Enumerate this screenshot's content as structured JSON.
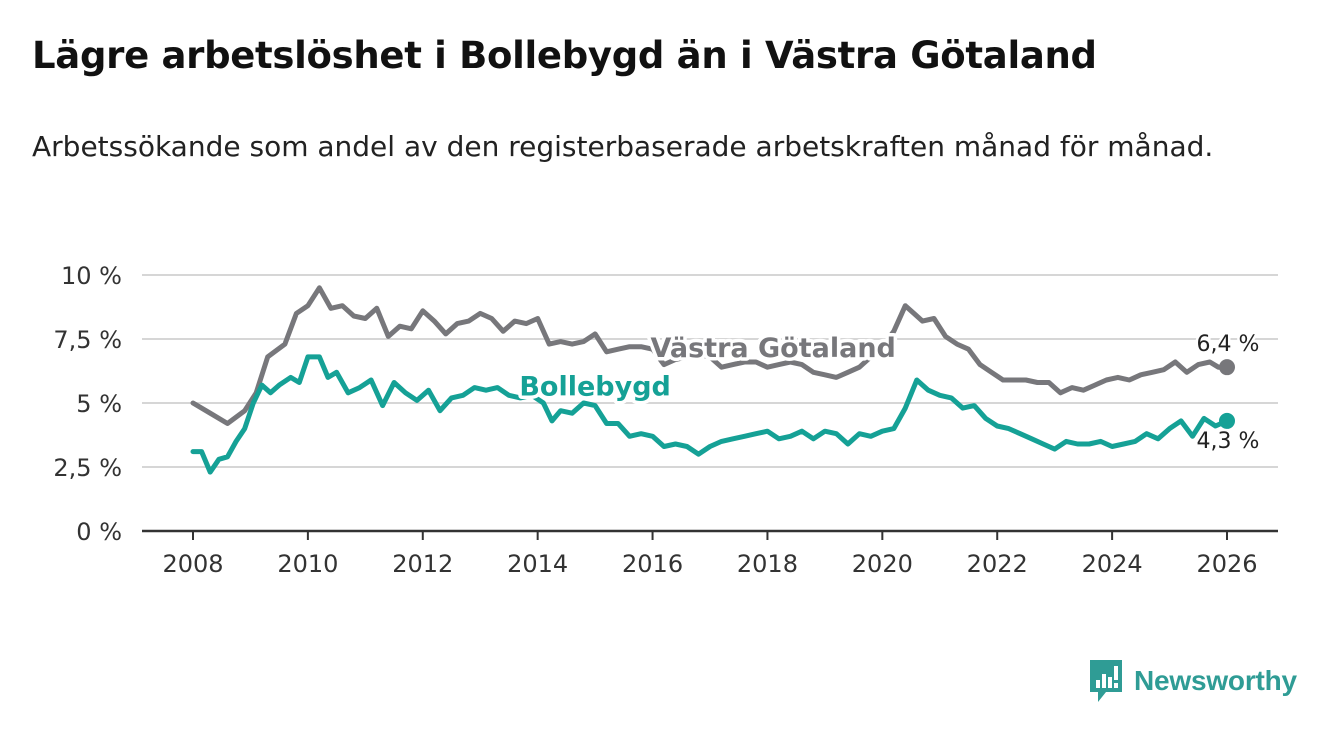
{
  "header": {
    "title": "Lägre arbetslöshet i Bollebygd än i Västra Götaland",
    "subtitle": "Arbetssökande som andel av den registerbaserade arbetskraften månad för månad."
  },
  "brand": {
    "name": "Newsworthy",
    "icon": "newsworthy-logo-icon",
    "color": "#2f9c95"
  },
  "chart_data": {
    "type": "line",
    "title": "Lägre arbetslöshet i Bollebygd än i Västra Götaland",
    "subtitle": "Arbetssökande som andel av den registerbaserade arbetskraften månad för månad.",
    "xlabel": "",
    "ylabel": "",
    "xlim": [
      2007.6,
      2026.9
    ],
    "ylim": [
      0,
      10
    ],
    "x_ticks": [
      2008,
      2010,
      2012,
      2014,
      2016,
      2018,
      2020,
      2022,
      2024,
      2026
    ],
    "x_tick_labels": [
      "2008",
      "2010",
      "2012",
      "2014",
      "2016",
      "2018",
      "2020",
      "2022",
      "2024",
      "2026"
    ],
    "y_ticks": [
      0,
      2.5,
      5,
      7.5,
      10
    ],
    "y_tick_labels": [
      "0 %",
      "2,5 %",
      "5 %",
      "7,5 %",
      "10 %"
    ],
    "grid": "horizontal",
    "legend": "inline labels",
    "series": [
      {
        "name": "Västra Götaland",
        "color": "#77777b",
        "end_label": "6,4 %",
        "x": [
          2008.0,
          2008.3,
          2008.6,
          2008.9,
          2009.1,
          2009.3,
          2009.6,
          2009.8,
          2010.0,
          2010.2,
          2010.4,
          2010.6,
          2010.8,
          2011.0,
          2011.2,
          2011.4,
          2011.6,
          2011.8,
          2012.0,
          2012.2,
          2012.4,
          2012.6,
          2012.8,
          2013.0,
          2013.2,
          2013.4,
          2013.6,
          2013.8,
          2014.0,
          2014.2,
          2014.4,
          2014.6,
          2014.8,
          2015.0,
          2015.2,
          2015.4,
          2015.6,
          2015.8,
          2016.0,
          2016.2,
          2016.4,
          2016.6,
          2016.8,
          2017.0,
          2017.2,
          2017.4,
          2017.6,
          2017.8,
          2018.0,
          2018.2,
          2018.4,
          2018.6,
          2018.8,
          2019.0,
          2019.2,
          2019.4,
          2019.6,
          2019.8,
          2020.0,
          2020.2,
          2020.4,
          2020.55,
          2020.7,
          2020.9,
          2021.1,
          2021.3,
          2021.5,
          2021.7,
          2021.9,
          2022.1,
          2022.3,
          2022.5,
          2022.7,
          2022.9,
          2023.1,
          2023.3,
          2023.5,
          2023.7,
          2023.9,
          2024.1,
          2024.3,
          2024.5,
          2024.7,
          2024.9,
          2025.1,
          2025.3,
          2025.5,
          2025.7,
          2025.85,
          2026.0
        ],
        "values": [
          5.0,
          4.6,
          4.2,
          4.7,
          5.4,
          6.8,
          7.3,
          8.5,
          8.8,
          9.5,
          8.7,
          8.8,
          8.4,
          8.3,
          8.7,
          7.6,
          8.0,
          7.9,
          8.6,
          8.2,
          7.7,
          8.1,
          8.2,
          8.5,
          8.3,
          7.8,
          8.2,
          8.1,
          8.3,
          7.3,
          7.4,
          7.3,
          7.4,
          7.7,
          7.0,
          7.1,
          7.2,
          7.2,
          7.1,
          6.5,
          6.7,
          6.8,
          6.9,
          6.8,
          6.4,
          6.5,
          6.6,
          6.6,
          6.4,
          6.5,
          6.6,
          6.5,
          6.2,
          6.1,
          6.0,
          6.2,
          6.4,
          6.8,
          7.2,
          7.8,
          8.8,
          8.5,
          8.2,
          8.3,
          7.6,
          7.3,
          7.1,
          6.5,
          6.2,
          5.9,
          5.9,
          5.9,
          5.8,
          5.8,
          5.4,
          5.6,
          5.5,
          5.7,
          5.9,
          6.0,
          5.9,
          6.1,
          6.2,
          6.3,
          6.6,
          6.2,
          6.5,
          6.6,
          6.4,
          6.4
        ]
      },
      {
        "name": "Bollebygd",
        "color": "#15a196",
        "end_label": "4,3 %",
        "x": [
          2008.0,
          2008.15,
          2008.3,
          2008.45,
          2008.6,
          2008.75,
          2008.9,
          2009.05,
          2009.2,
          2009.35,
          2009.5,
          2009.7,
          2009.85,
          2010.0,
          2010.2,
          2010.35,
          2010.5,
          2010.7,
          2010.9,
          2011.1,
          2011.3,
          2011.5,
          2011.7,
          2011.9,
          2012.1,
          2012.3,
          2012.5,
          2012.7,
          2012.9,
          2013.1,
          2013.3,
          2013.5,
          2013.7,
          2013.9,
          2014.1,
          2014.25,
          2014.4,
          2014.6,
          2014.8,
          2015.0,
          2015.2,
          2015.4,
          2015.6,
          2015.8,
          2016.0,
          2016.2,
          2016.4,
          2016.6,
          2016.8,
          2017.0,
          2017.2,
          2017.4,
          2017.6,
          2017.8,
          2018.0,
          2018.2,
          2018.4,
          2018.6,
          2018.8,
          2019.0,
          2019.2,
          2019.4,
          2019.6,
          2019.8,
          2020.0,
          2020.2,
          2020.4,
          2020.6,
          2020.8,
          2021.0,
          2021.2,
          2021.4,
          2021.6,
          2021.8,
          2022.0,
          2022.2,
          2022.4,
          2022.6,
          2022.8,
          2023.0,
          2023.2,
          2023.4,
          2023.6,
          2023.8,
          2024.0,
          2024.2,
          2024.4,
          2024.6,
          2024.8,
          2025.0,
          2025.2,
          2025.4,
          2025.6,
          2025.8,
          2026.0
        ],
        "values": [
          3.1,
          3.1,
          2.3,
          2.8,
          2.9,
          3.5,
          4.0,
          5.0,
          5.7,
          5.4,
          5.7,
          6.0,
          5.8,
          6.8,
          6.8,
          6.0,
          6.2,
          5.4,
          5.6,
          5.9,
          4.9,
          5.8,
          5.4,
          5.1,
          5.5,
          4.7,
          5.2,
          5.3,
          5.6,
          5.5,
          5.6,
          5.3,
          5.2,
          5.3,
          5.0,
          4.3,
          4.7,
          4.6,
          5.0,
          4.9,
          4.2,
          4.2,
          3.7,
          3.8,
          3.7,
          3.3,
          3.4,
          3.3,
          3.0,
          3.3,
          3.5,
          3.6,
          3.7,
          3.8,
          3.9,
          3.6,
          3.7,
          3.9,
          3.6,
          3.9,
          3.8,
          3.4,
          3.8,
          3.7,
          3.9,
          4.0,
          4.8,
          5.9,
          5.5,
          5.3,
          5.2,
          4.8,
          4.9,
          4.4,
          4.1,
          4.0,
          3.8,
          3.6,
          3.4,
          3.2,
          3.5,
          3.4,
          3.4,
          3.5,
          3.3,
          3.4,
          3.5,
          3.8,
          3.6,
          4.0,
          4.3,
          3.7,
          4.4,
          4.1,
          4.3
        ]
      }
    ],
    "inline_labels": [
      {
        "series": "Västra Götaland",
        "text": "Västra Götaland",
        "x": 2018.1,
        "y": 6.8
      },
      {
        "series": "Bollebygd",
        "text": "Bollebygd",
        "x": 2015.0,
        "y": 5.3
      }
    ]
  }
}
